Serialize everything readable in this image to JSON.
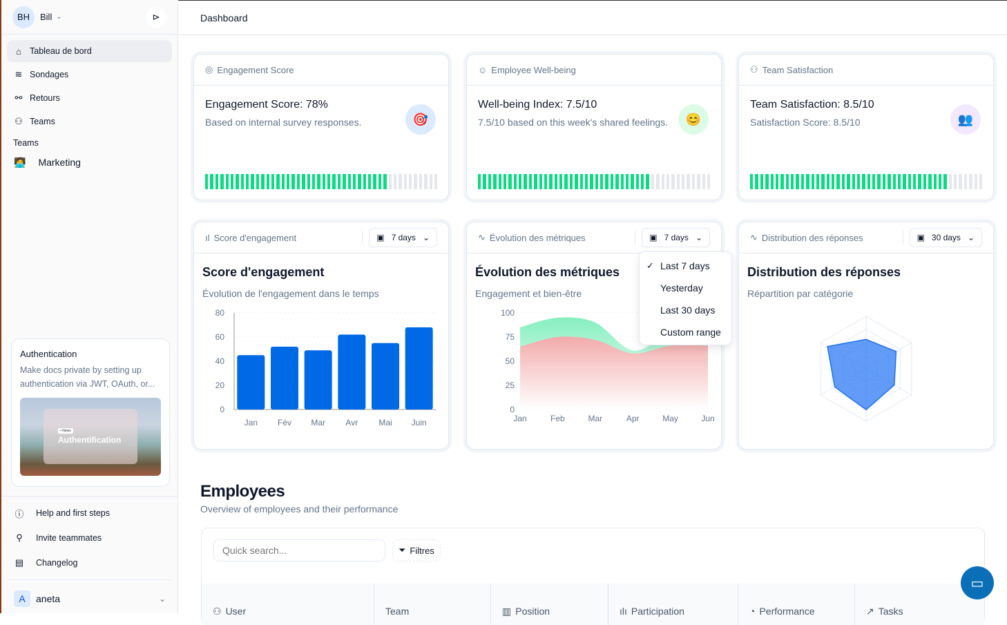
{
  "sidebar": {
    "user": {
      "initials": "BH",
      "name": "Bill"
    },
    "nav": [
      {
        "label": "Tableau de bord",
        "icon": "home-icon"
      },
      {
        "label": "Sondages",
        "icon": "layers-icon"
      },
      {
        "label": "Retours",
        "icon": "plug-icon"
      },
      {
        "label": "Teams",
        "icon": "users-icon"
      }
    ],
    "teams_section": "Teams",
    "teams": [
      {
        "label": "Marketing",
        "icon": "technologist-emoji-icon"
      }
    ],
    "promo": {
      "title": "Authentication",
      "text": "Make docs private by setting up authentication via JWT, OAuth, or...",
      "image_tag": "• News",
      "image_title": "Authentification"
    },
    "bottom": [
      {
        "label": "Help and first steps",
        "icon": "help-circle-icon"
      },
      {
        "label": "Invite teammates",
        "icon": "user-plus-icon"
      },
      {
        "label": "Changelog",
        "icon": "newspaper-icon"
      }
    ],
    "account": {
      "initial": "A",
      "name": "aneta"
    }
  },
  "header": {
    "title": "Dashboard"
  },
  "kpis": [
    {
      "header": "Engagement Score",
      "title": "Engagement Score: 78%",
      "sub": "Based on internal survey responses.",
      "emoji": "🎯",
      "badge_color": "#dbeafe",
      "progress": 0.78
    },
    {
      "header": "Employee Well-being",
      "title": "Well-being Index: 7.5/10",
      "sub": "7.5/10 based on this week's shared feelings.",
      "emoji": "😊",
      "badge_color": "#dcfce7",
      "progress": 0.75
    },
    {
      "header": "Team Satisfaction",
      "title": "Team Satisfaction: 8.5/10",
      "sub": "Satisfaction Score: 8.5/10",
      "emoji": "👥",
      "badge_color": "#f3e8ff",
      "progress": 0.85
    }
  ],
  "colors": {
    "progress_on": "#0bdc84",
    "progress_off": "#e5e7eb",
    "bar": "#0069e6",
    "green_area": "#86efc0",
    "red_area": "#f2aaaa",
    "radar": "#3b82f6"
  },
  "charts": [
    {
      "header": "Score d'engagement",
      "range": "7 days",
      "title": "Score d'engagement",
      "sub": "Évolution de l'engagement dans le temps"
    },
    {
      "header": "Évolution des métriques",
      "range": "7 days",
      "title": "Évolution des métriques",
      "sub": "Engagement et bien-être"
    },
    {
      "header": "Distribution des réponses",
      "range": "30 days",
      "title": "Distribution des réponses",
      "sub": "Répartition par catégorie"
    }
  ],
  "dropdown": {
    "items": [
      {
        "label": "Last 7 days",
        "checked": true
      },
      {
        "label": "Yesterday"
      },
      {
        "label": "Last 30 days"
      },
      {
        "label": "Custom range"
      }
    ]
  },
  "chart_data": [
    {
      "type": "bar",
      "categories": [
        "Jan",
        "Fév",
        "Mar",
        "Avr",
        "Mai",
        "Juin"
      ],
      "values": [
        45,
        52,
        49,
        62,
        55,
        68
      ],
      "ylim": [
        0,
        80
      ],
      "yticks": [
        0,
        20,
        40,
        60,
        80
      ],
      "grid": true
    },
    {
      "type": "area",
      "categories": [
        "Jan",
        "Feb",
        "Mar",
        "Apr",
        "May",
        "Jun"
      ],
      "ylim": [
        0,
        100
      ],
      "yticks": [
        0,
        25,
        50,
        75,
        100
      ],
      "series": [
        {
          "values": [
            85,
            95,
            90,
            61,
            78,
            80
          ]
        },
        {
          "values": [
            65,
            75,
            72,
            58,
            66,
            66
          ]
        }
      ],
      "grid": true
    },
    {
      "type": "radar",
      "axes": 6,
      "values": [
        56,
        66,
        62,
        78,
        69,
        85
      ],
      "max": 100,
      "rings": 4
    }
  ],
  "employees": {
    "title": "Employees",
    "sub": "Overview of employees and their performance",
    "search_placeholder": "Quick search...",
    "filter_label": "Filtres",
    "columns": [
      {
        "label": "User",
        "icon": "users-icon"
      },
      {
        "label": "Team",
        "icon": ""
      },
      {
        "label": "Position",
        "icon": "briefcase-icon"
      },
      {
        "label": "Participation",
        "icon": "bar-chart-icon"
      },
      {
        "label": "Performance",
        "icon": "pie-chart-icon"
      },
      {
        "label": "Tasks",
        "icon": "trending-up-icon"
      }
    ]
  }
}
